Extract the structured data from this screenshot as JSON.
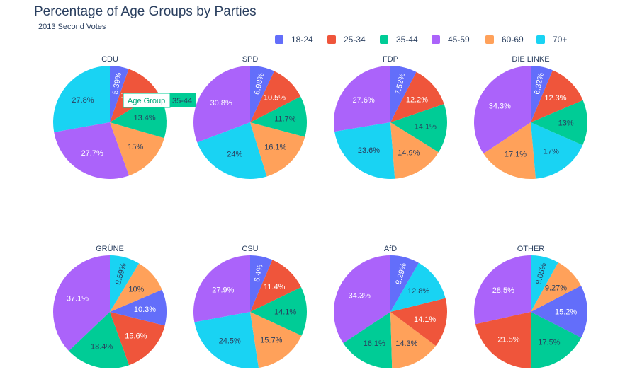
{
  "title": "Percentage of Age Groups by Parties",
  "subtitle": "2013 Second Votes",
  "legend": {
    "items": [
      {
        "label": "18-24",
        "color": "#636efa"
      },
      {
        "label": "25-34",
        "color": "#ef553b"
      },
      {
        "label": "35-44",
        "color": "#00cc96"
      },
      {
        "label": "45-59",
        "color": "#ab63fa"
      },
      {
        "label": "60-69",
        "color": "#ffa15a"
      },
      {
        "label": "70+",
        "color": "#19d3f3"
      }
    ]
  },
  "tooltip": {
    "label": "Age Group",
    "value": "35-44",
    "color": "#00cc96"
  },
  "chart_data": {
    "type": "pie",
    "categories": [
      "18-24",
      "25-34",
      "35-44",
      "45-59",
      "60-69",
      "70+"
    ],
    "legend_position": "top-right",
    "pies": [
      {
        "name": "CDU",
        "values": [
          5.39,
          10.7,
          13.4,
          27.7,
          15,
          27.8
        ],
        "labels": [
          "5.39%",
          "10.7%",
          "13.4%",
          "27.7%",
          "15%",
          "27.8%"
        ]
      },
      {
        "name": "SPD",
        "values": [
          6.98,
          10.5,
          11.7,
          30.8,
          16.1,
          24
        ],
        "labels": [
          "6.98%",
          "10.5%",
          "11.7%",
          "30.8%",
          "16.1%",
          "24%"
        ]
      },
      {
        "name": "FDP",
        "values": [
          7.52,
          12.2,
          14.1,
          27.6,
          14.9,
          23.6
        ],
        "labels": [
          "7.52%",
          "12.2%",
          "14.1%",
          "27.6%",
          "14.9%",
          "23.6%"
        ]
      },
      {
        "name": "DIE LINKE",
        "values": [
          6.32,
          12.3,
          13,
          34.3,
          17.1,
          17
        ],
        "labels": [
          "6.32%",
          "12.3%",
          "13%",
          "34.3%",
          "17.1%",
          "17%"
        ]
      },
      {
        "name": "GRÜNE",
        "values": [
          10.3,
          15.6,
          18.4,
          37.1,
          10,
          8.59
        ],
        "labels": [
          "10.3%",
          "15.6%",
          "18.4%",
          "37.1%",
          "10%",
          "8.59%"
        ]
      },
      {
        "name": "CSU",
        "values": [
          6.4,
          11.4,
          14.1,
          27.9,
          15.7,
          24.5
        ],
        "labels": [
          "6.4%",
          "11.4%",
          "14.1%",
          "27.9%",
          "15.7%",
          "24.5%"
        ]
      },
      {
        "name": "AfD",
        "values": [
          8.29,
          14.1,
          16.1,
          34.3,
          14.3,
          12.8
        ],
        "labels": [
          "8.29%",
          "14.1%",
          "16.1%",
          "34.3%",
          "14.3%",
          "12.8%"
        ]
      },
      {
        "name": "OTHER",
        "values": [
          15.2,
          21.5,
          17.5,
          28.5,
          9.27,
          8.05
        ],
        "labels": [
          "15.2%",
          "21.5%",
          "17.5%",
          "28.5%",
          "9.27%",
          "8.05%"
        ]
      }
    ]
  }
}
